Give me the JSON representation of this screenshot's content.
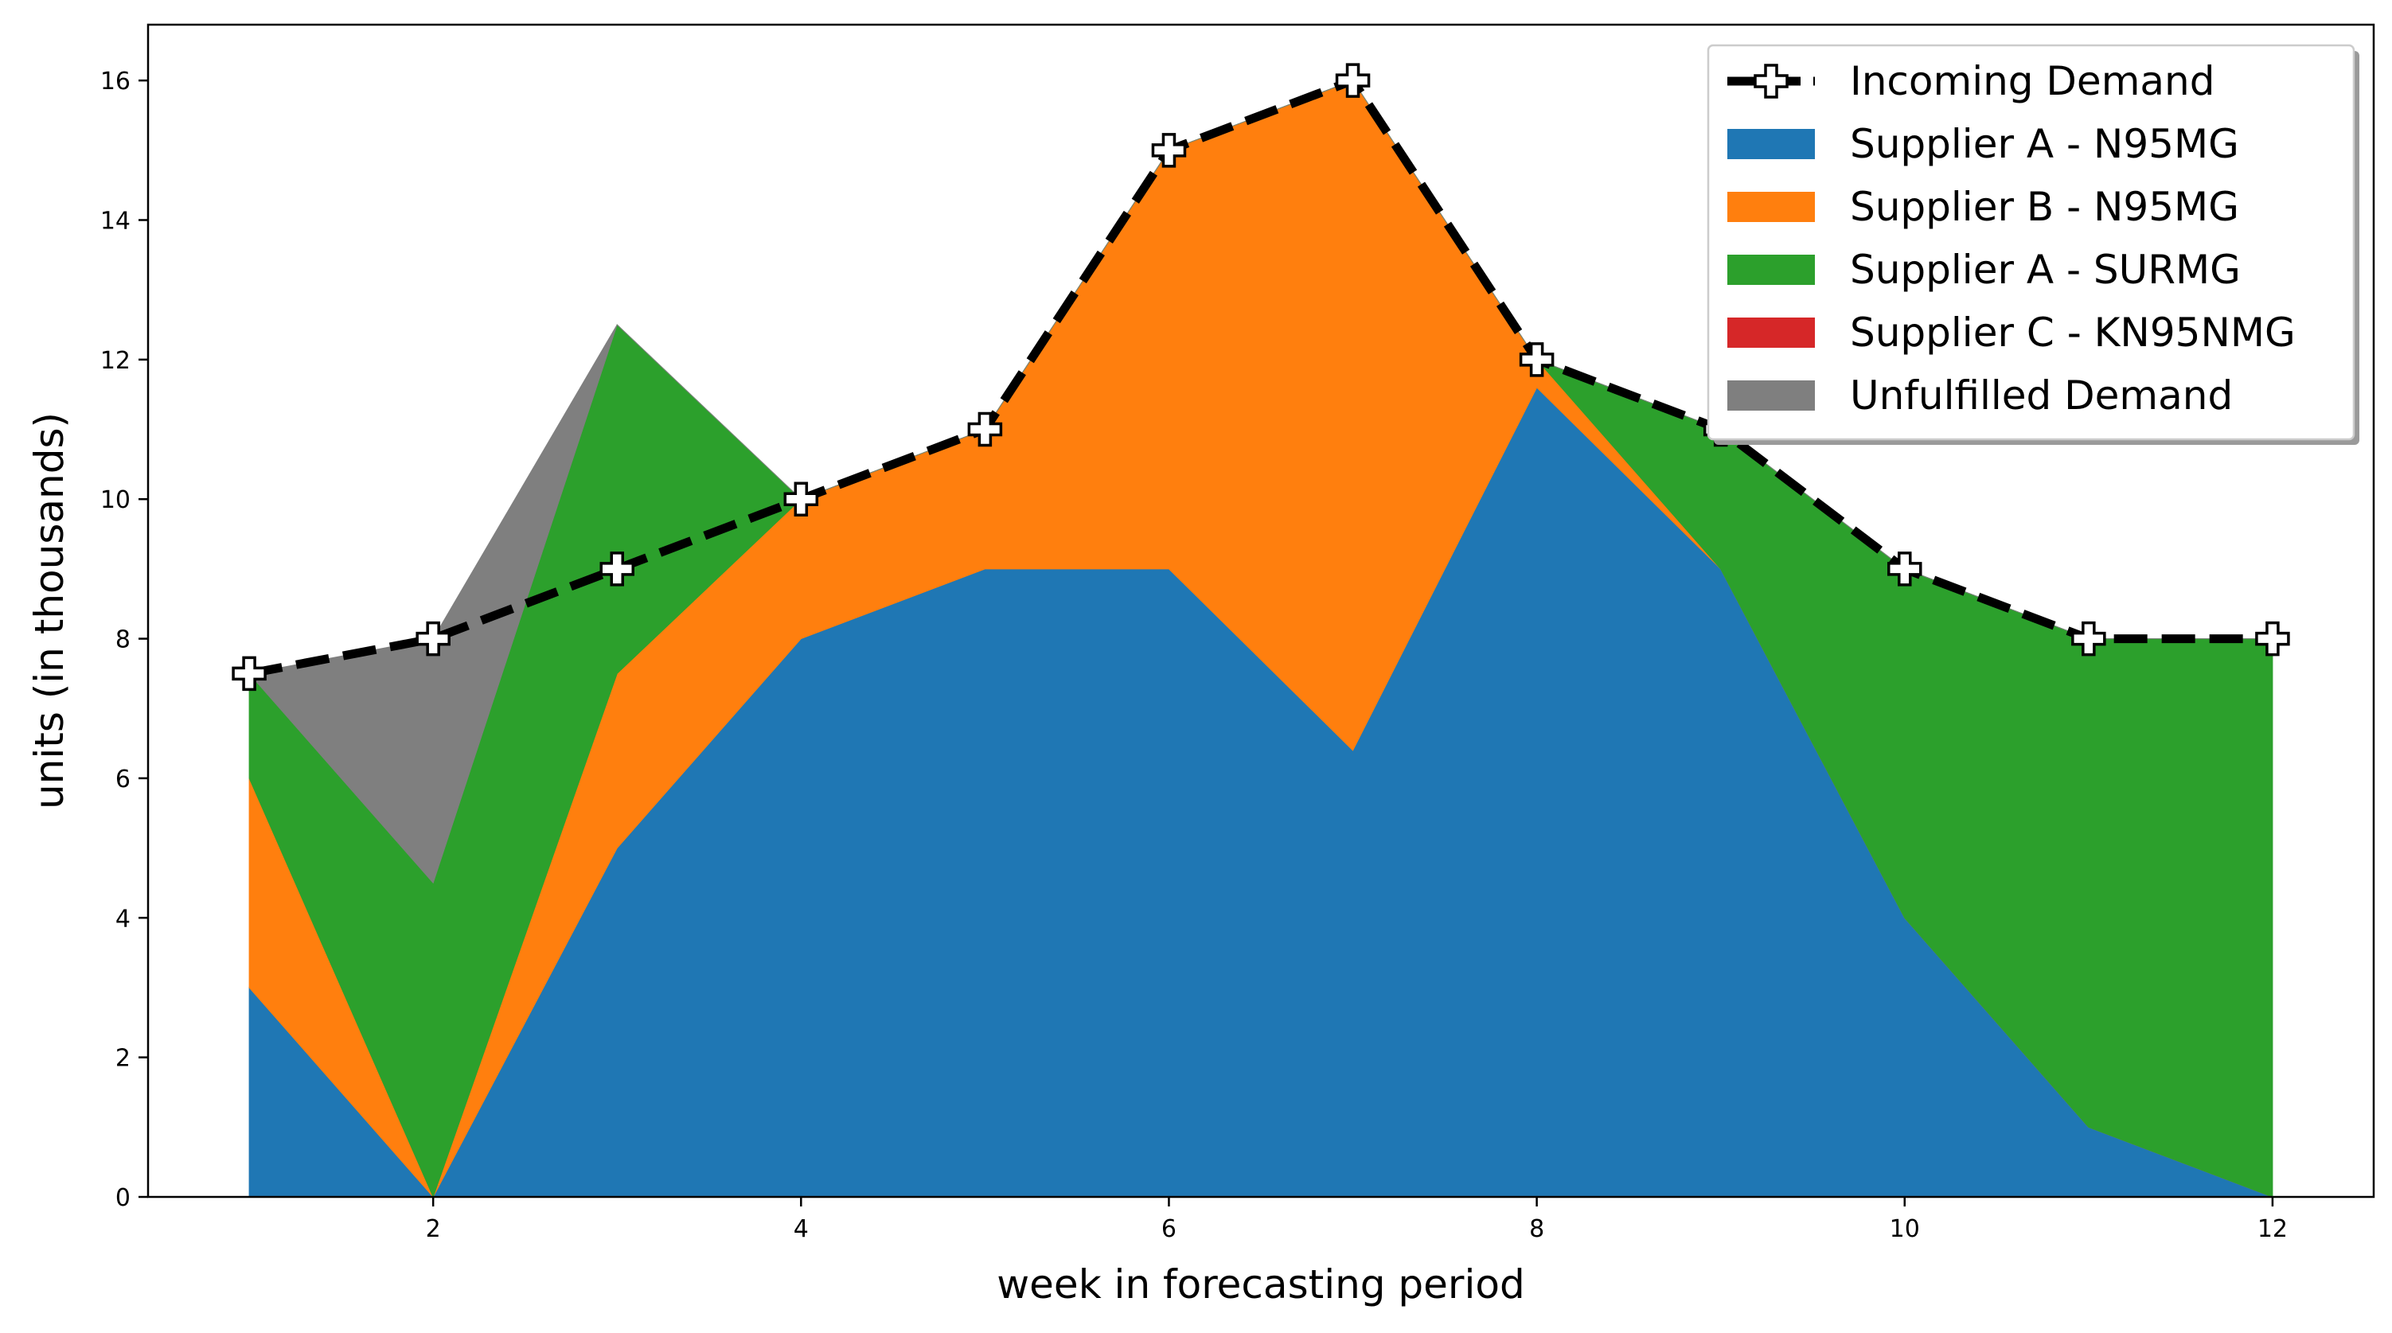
{
  "chart_data": {
    "type": "area",
    "stacked": true,
    "title": "",
    "xlabel": "week in forecasting period",
    "ylabel": "units (in thousands)",
    "x": [
      1,
      2,
      3,
      4,
      5,
      6,
      7,
      8,
      9,
      10,
      11,
      12
    ],
    "xlim": [
      0.45,
      12.55
    ],
    "ylim": [
      0,
      16.8
    ],
    "xticks": [
      2,
      4,
      6,
      8,
      10,
      12
    ],
    "xtick_labels": [
      "2",
      "4",
      "6",
      "8",
      "10",
      "12"
    ],
    "yticks": [
      0,
      2,
      4,
      6,
      8,
      10,
      12,
      14,
      16
    ],
    "ytick_labels": [
      "0",
      "2",
      "4",
      "6",
      "8",
      "10",
      "12",
      "14",
      "16"
    ],
    "grid": false,
    "legend_position": "top-right",
    "series": [
      {
        "name": "Supplier A - N95MG",
        "color": "#1f77b4",
        "values": [
          3,
          0,
          5,
          8,
          9,
          9,
          6.4,
          11.6,
          9,
          4,
          1,
          0
        ]
      },
      {
        "name": "Supplier B - N95MG",
        "color": "#ff7f0e",
        "values": [
          3,
          0,
          2.5,
          2,
          2,
          6,
          9.6,
          0.4,
          0,
          0,
          0,
          0
        ]
      },
      {
        "name": "Supplier A - SURMG",
        "color": "#2ca02c",
        "values": [
          1.5,
          4.5,
          5,
          0,
          0,
          0,
          0,
          0,
          2,
          5,
          7,
          8
        ]
      },
      {
        "name": "Supplier C - KN95NMG",
        "color": "#d62728",
        "values": [
          0,
          0,
          0,
          0,
          0,
          0,
          0,
          0,
          0,
          0,
          0,
          0
        ]
      },
      {
        "name": "Unfulfilled Demand",
        "color": "#7f7f7f",
        "values": [
          0,
          3.5,
          0,
          0,
          0,
          0,
          0,
          0,
          0,
          0,
          0,
          0
        ]
      }
    ],
    "line_series": {
      "name": "Incoming Demand",
      "color": "#000000",
      "marker": "plus-filled",
      "values": [
        7.5,
        8,
        9,
        10,
        11,
        15,
        16,
        12,
        11,
        9,
        8,
        8
      ]
    },
    "legend_order": [
      "Incoming Demand",
      "Supplier A - N95MG",
      "Supplier B - N95MG",
      "Supplier A - SURMG",
      "Supplier C - KN95NMG",
      "Unfulfilled Demand"
    ]
  }
}
